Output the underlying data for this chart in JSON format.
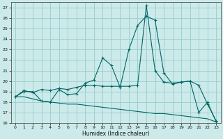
{
  "xlabel": "Humidex (Indice chaleur)",
  "background_color": "#cceaea",
  "line_color": "#006666",
  "grid_color": "#99cccc",
  "xlim": [
    -0.5,
    23.5
  ],
  "ylim": [
    16,
    27.5
  ],
  "yticks": [
    16,
    17,
    18,
    19,
    20,
    21,
    22,
    23,
    24,
    25,
    26,
    27
  ],
  "xticks": [
    0,
    1,
    2,
    3,
    4,
    5,
    6,
    7,
    8,
    9,
    10,
    11,
    12,
    13,
    14,
    15,
    16,
    17,
    18,
    19,
    20,
    21,
    22,
    23
  ],
  "line1_x": [
    0,
    1,
    2,
    3,
    4,
    5,
    6,
    7,
    8,
    9,
    10,
    11,
    12,
    13,
    14,
    15,
    16,
    17,
    18,
    19,
    20,
    21,
    22,
    23
  ],
  "line1_y": [
    18.5,
    19.0,
    19.0,
    18.1,
    18.0,
    19.2,
    18.7,
    18.8,
    19.8,
    20.1,
    22.2,
    21.5,
    19.4,
    23.0,
    25.3,
    26.2,
    25.8,
    20.8,
    19.7,
    19.9,
    20.0,
    19.6,
    17.8,
    16.2
  ],
  "line2_x": [
    0,
    1,
    2,
    3,
    4,
    5,
    6,
    7,
    8,
    9,
    10,
    11,
    12,
    13,
    14,
    15,
    16,
    17,
    18,
    19,
    20,
    21,
    22,
    23
  ],
  "line2_y": [
    18.5,
    19.1,
    18.9,
    19.2,
    19.1,
    19.3,
    19.2,
    19.4,
    19.6,
    19.6,
    19.5,
    19.5,
    19.5,
    19.5,
    19.6,
    27.2,
    21.0,
    19.9,
    19.8,
    19.9,
    20.0,
    17.0,
    18.0,
    16.1
  ],
  "line3_x": [
    0,
    1,
    2,
    3,
    4,
    5,
    6,
    7,
    8,
    9,
    10,
    11,
    12,
    13,
    14,
    15,
    16,
    17,
    18,
    19,
    20,
    21,
    22,
    23
  ],
  "line3_y": [
    18.5,
    18.5,
    18.3,
    18.1,
    18.0,
    17.9,
    17.8,
    17.8,
    17.7,
    17.6,
    17.5,
    17.4,
    17.3,
    17.2,
    17.1,
    17.0,
    16.9,
    16.9,
    16.8,
    16.7,
    16.6,
    16.5,
    16.4,
    16.1
  ]
}
